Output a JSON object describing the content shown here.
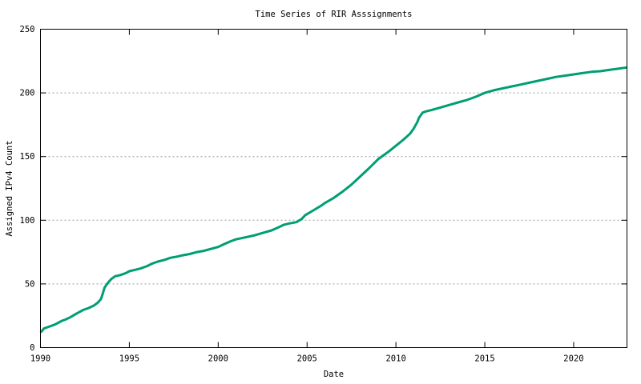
{
  "chart_data": {
    "type": "line",
    "title": "Time Series of RIR Asssignments",
    "xlabel": "Date",
    "ylabel": "Assigned IPv4 Count",
    "xlim": [
      1990,
      2023
    ],
    "ylim": [
      0,
      250
    ],
    "x_ticks": [
      1990,
      1995,
      2000,
      2005,
      2010,
      2015,
      2020
    ],
    "y_ticks": [
      0,
      50,
      100,
      150,
      200,
      250
    ],
    "grid": "horizontal-dashed",
    "legend": "none",
    "line_color": "#009e73",
    "grid_color": "#9a9a9a",
    "series": [
      {
        "name": "Assigned IPv4 Count",
        "points": [
          [
            1990.0,
            12
          ],
          [
            1990.08,
            13
          ],
          [
            1990.2,
            15
          ],
          [
            1990.4,
            16
          ],
          [
            1990.6,
            17
          ],
          [
            1990.8,
            18
          ],
          [
            1991.0,
            19.5
          ],
          [
            1991.2,
            21
          ],
          [
            1991.4,
            22
          ],
          [
            1991.7,
            24
          ],
          [
            1992.0,
            26.5
          ],
          [
            1992.2,
            28
          ],
          [
            1992.4,
            29.5
          ],
          [
            1992.7,
            31
          ],
          [
            1993.0,
            33
          ],
          [
            1993.2,
            35
          ],
          [
            1993.4,
            38
          ],
          [
            1993.5,
            42
          ],
          [
            1993.6,
            47
          ],
          [
            1993.8,
            51
          ],
          [
            1994.0,
            54
          ],
          [
            1994.2,
            56
          ],
          [
            1994.5,
            57
          ],
          [
            1994.8,
            58.5
          ],
          [
            1995.0,
            60
          ],
          [
            1995.3,
            61
          ],
          [
            1995.6,
            62
          ],
          [
            1996.0,
            64
          ],
          [
            1996.3,
            66
          ],
          [
            1996.6,
            67.5
          ],
          [
            1997.0,
            69
          ],
          [
            1997.3,
            70.5
          ],
          [
            1997.7,
            71.5
          ],
          [
            1998.0,
            72.5
          ],
          [
            1998.4,
            73.5
          ],
          [
            1998.8,
            75
          ],
          [
            1999.2,
            76
          ],
          [
            1999.6,
            77.5
          ],
          [
            2000.0,
            79
          ],
          [
            2000.3,
            81
          ],
          [
            2000.7,
            83.5
          ],
          [
            2001.0,
            85
          ],
          [
            2001.5,
            86.5
          ],
          [
            2002.0,
            88
          ],
          [
            2002.5,
            90
          ],
          [
            2003.0,
            92
          ],
          [
            2003.4,
            94.5
          ],
          [
            2003.7,
            96.5
          ],
          [
            2004.0,
            97.5
          ],
          [
            2004.4,
            98.5
          ],
          [
            2004.7,
            101
          ],
          [
            2004.9,
            104
          ],
          [
            2005.2,
            106.5
          ],
          [
            2005.5,
            109
          ],
          [
            2005.8,
            111.5
          ],
          [
            2006.0,
            113.5
          ],
          [
            2006.5,
            117.5
          ],
          [
            2007.0,
            122.5
          ],
          [
            2007.5,
            128
          ],
          [
            2008.0,
            134.5
          ],
          [
            2008.5,
            141
          ],
          [
            2009.0,
            148
          ],
          [
            2009.3,
            151
          ],
          [
            2009.6,
            154
          ],
          [
            2010.0,
            158.5
          ],
          [
            2010.4,
            163
          ],
          [
            2010.8,
            168
          ],
          [
            2011.0,
            172
          ],
          [
            2011.2,
            177
          ],
          [
            2011.3,
            180.5
          ],
          [
            2011.5,
            184.5
          ],
          [
            2011.7,
            185.5
          ],
          [
            2012.0,
            186.5
          ],
          [
            2012.5,
            188.5
          ],
          [
            2013.0,
            190.5
          ],
          [
            2013.5,
            192.5
          ],
          [
            2014.0,
            194.5
          ],
          [
            2014.5,
            197
          ],
          [
            2015.0,
            200
          ],
          [
            2015.5,
            202
          ],
          [
            2016.0,
            203.5
          ],
          [
            2016.5,
            205
          ],
          [
            2017.0,
            206.5
          ],
          [
            2017.5,
            208
          ],
          [
            2018.0,
            209.5
          ],
          [
            2018.5,
            211
          ],
          [
            2019.0,
            212.5
          ],
          [
            2019.5,
            213.5
          ],
          [
            2020.0,
            214.5
          ],
          [
            2020.5,
            215.5
          ],
          [
            2021.0,
            216.5
          ],
          [
            2021.5,
            217
          ],
          [
            2022.0,
            218
          ],
          [
            2022.5,
            219
          ],
          [
            2023.0,
            220
          ]
        ]
      }
    ]
  }
}
